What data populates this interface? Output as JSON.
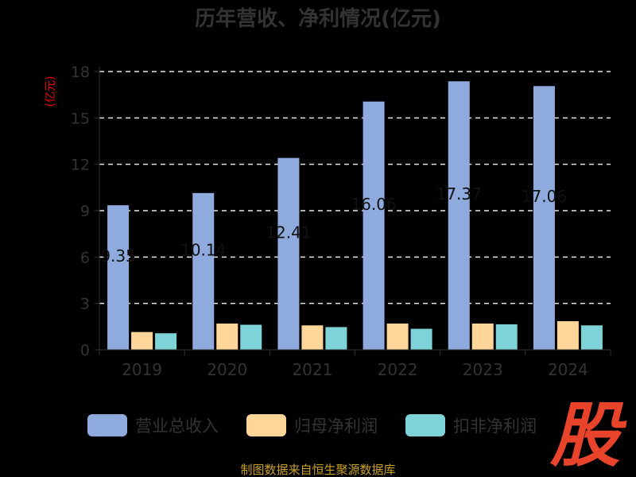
{
  "chart_data": {
    "type": "bar",
    "title": "历年营收、净利情况(亿元)",
    "ylabel": "(亿元)",
    "xlabel": "",
    "categories": [
      "2019",
      "2020",
      "2021",
      "2022",
      "2023",
      "2024"
    ],
    "series": [
      {
        "name": "营业总收入",
        "color": "#8faadc",
        "values": [
          9.35,
          10.14,
          12.41,
          16.06,
          17.37,
          17.06
        ],
        "labels": [
          "9.35",
          "10.14",
          "12.41",
          "16.06",
          "17.37",
          "17.06"
        ]
      },
      {
        "name": "归母净利润",
        "color": "#ffd699",
        "values": [
          1.15,
          1.7,
          1.58,
          1.7,
          1.7,
          1.85
        ]
      },
      {
        "name": "扣非净利润",
        "color": "#7ed3d8",
        "values": [
          1.07,
          1.62,
          1.47,
          1.36,
          1.65,
          1.58
        ]
      }
    ],
    "yticks": [
      0,
      3,
      6,
      9,
      12,
      15,
      18
    ],
    "ylim": [
      0,
      18
    ],
    "grid": true,
    "legend_position": "bottom"
  },
  "source_text": "制图数据来自恒生聚源数据库",
  "watermark_text": "股"
}
